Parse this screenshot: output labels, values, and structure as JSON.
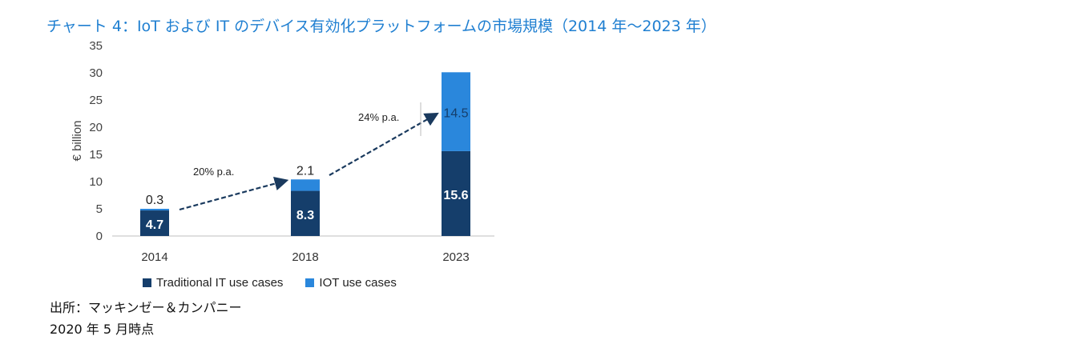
{
  "page": {
    "title": "チャート 4：IoT および IT のデバイス有効化プラットフォームの市場規模（2014 年～2023 年）",
    "source": "出所：マッキンゼー＆カンパニー",
    "as_of": "2020 年 5 月時点"
  },
  "colors": {
    "title": "#1f7fd1",
    "traditional": "#153e6b",
    "iot": "#2a87dc",
    "arrow": "#1a3a5e",
    "axis": "#bfbfbf"
  },
  "chart_data": {
    "type": "bar",
    "stacked": true,
    "categories": [
      "2014",
      "2018",
      "2023"
    ],
    "series": [
      {
        "name": "Traditional IT use cases",
        "values": [
          4.7,
          8.3,
          15.6
        ]
      },
      {
        "name": "IOT use cases",
        "values": [
          0.3,
          2.1,
          14.5
        ]
      }
    ],
    "ylabel": "€ billion",
    "ylim": [
      0,
      35
    ],
    "yticks": [
      0,
      5,
      10,
      15,
      20,
      25,
      30,
      35
    ],
    "data_labels": {
      "traditional": [
        "4.7",
        "8.3",
        "15.6"
      ],
      "iot": [
        "0.3",
        "2.1",
        "14.5"
      ]
    },
    "annotations": [
      {
        "text": "20% p.a.",
        "from": "2014",
        "to": "2018"
      },
      {
        "text": "24% p.a.",
        "from": "2018",
        "to": "2023"
      }
    ],
    "legend_position": "bottom",
    "grid": false
  }
}
